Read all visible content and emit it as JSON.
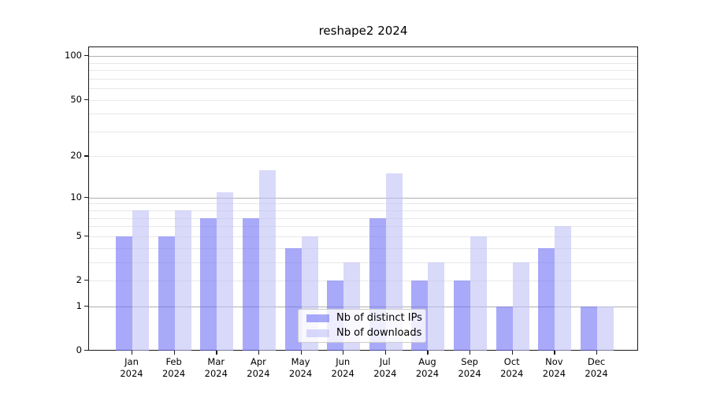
{
  "title": "reshape2 2024",
  "colors": {
    "bar_distinct_ips": "rgba(112,112,247,0.6)",
    "bar_downloads": "rgba(192,192,247,0.6)",
    "grid_major": "#b0b0b0",
    "grid_minor": "#e8e8e8",
    "axis": "#1a1a1a"
  },
  "legend": {
    "items": [
      {
        "label": "Nb of distinct IPs",
        "color": "rgba(112,112,247,0.6)"
      },
      {
        "label": "Nb of downloads",
        "color": "rgba(192,192,247,0.6)"
      }
    ]
  },
  "axes": {
    "y_ticks": [
      0,
      1,
      2,
      5,
      10,
      20,
      50,
      100
    ],
    "y_major_grid": [
      1,
      10,
      100
    ],
    "y_minor_grid": [
      2,
      3,
      4,
      5,
      6,
      7,
      8,
      9,
      20,
      30,
      40,
      50,
      60,
      70,
      80,
      90
    ],
    "x_ticks": [
      {
        "line1": "Jan",
        "line2": "2024"
      },
      {
        "line1": "Feb",
        "line2": "2024"
      },
      {
        "line1": "Mar",
        "line2": "2024"
      },
      {
        "line1": "Apr",
        "line2": "2024"
      },
      {
        "line1": "May",
        "line2": "2024"
      },
      {
        "line1": "Jun",
        "line2": "2024"
      },
      {
        "line1": "Jul",
        "line2": "2024"
      },
      {
        "line1": "Aug",
        "line2": "2024"
      },
      {
        "line1": "Sep",
        "line2": "2024"
      },
      {
        "line1": "Oct",
        "line2": "2024"
      },
      {
        "line1": "Nov",
        "line2": "2024"
      },
      {
        "line1": "Dec",
        "line2": "2024"
      }
    ]
  },
  "chart_data": {
    "type": "bar",
    "title": "reshape2 2024",
    "categories": [
      "Jan 2024",
      "Feb 2024",
      "Mar 2024",
      "Apr 2024",
      "May 2024",
      "Jun 2024",
      "Jul 2024",
      "Aug 2024",
      "Sep 2024",
      "Oct 2024",
      "Nov 2024",
      "Dec 2024"
    ],
    "series": [
      {
        "name": "Nb of distinct IPs",
        "values": [
          5,
          5,
          7,
          7,
          4,
          2,
          7,
          2,
          2,
          1,
          4,
          1
        ]
      },
      {
        "name": "Nb of downloads",
        "values": [
          8,
          8,
          11,
          16,
          5,
          3,
          15,
          3,
          5,
          3,
          6,
          1
        ]
      }
    ],
    "xlabel": "",
    "ylabel": "",
    "y_scale": "log1p",
    "y_tick_values": [
      0,
      1,
      2,
      5,
      10,
      20,
      50,
      100
    ],
    "ylim": [
      0,
      115
    ],
    "grid": true,
    "legend_position": "lower center"
  }
}
